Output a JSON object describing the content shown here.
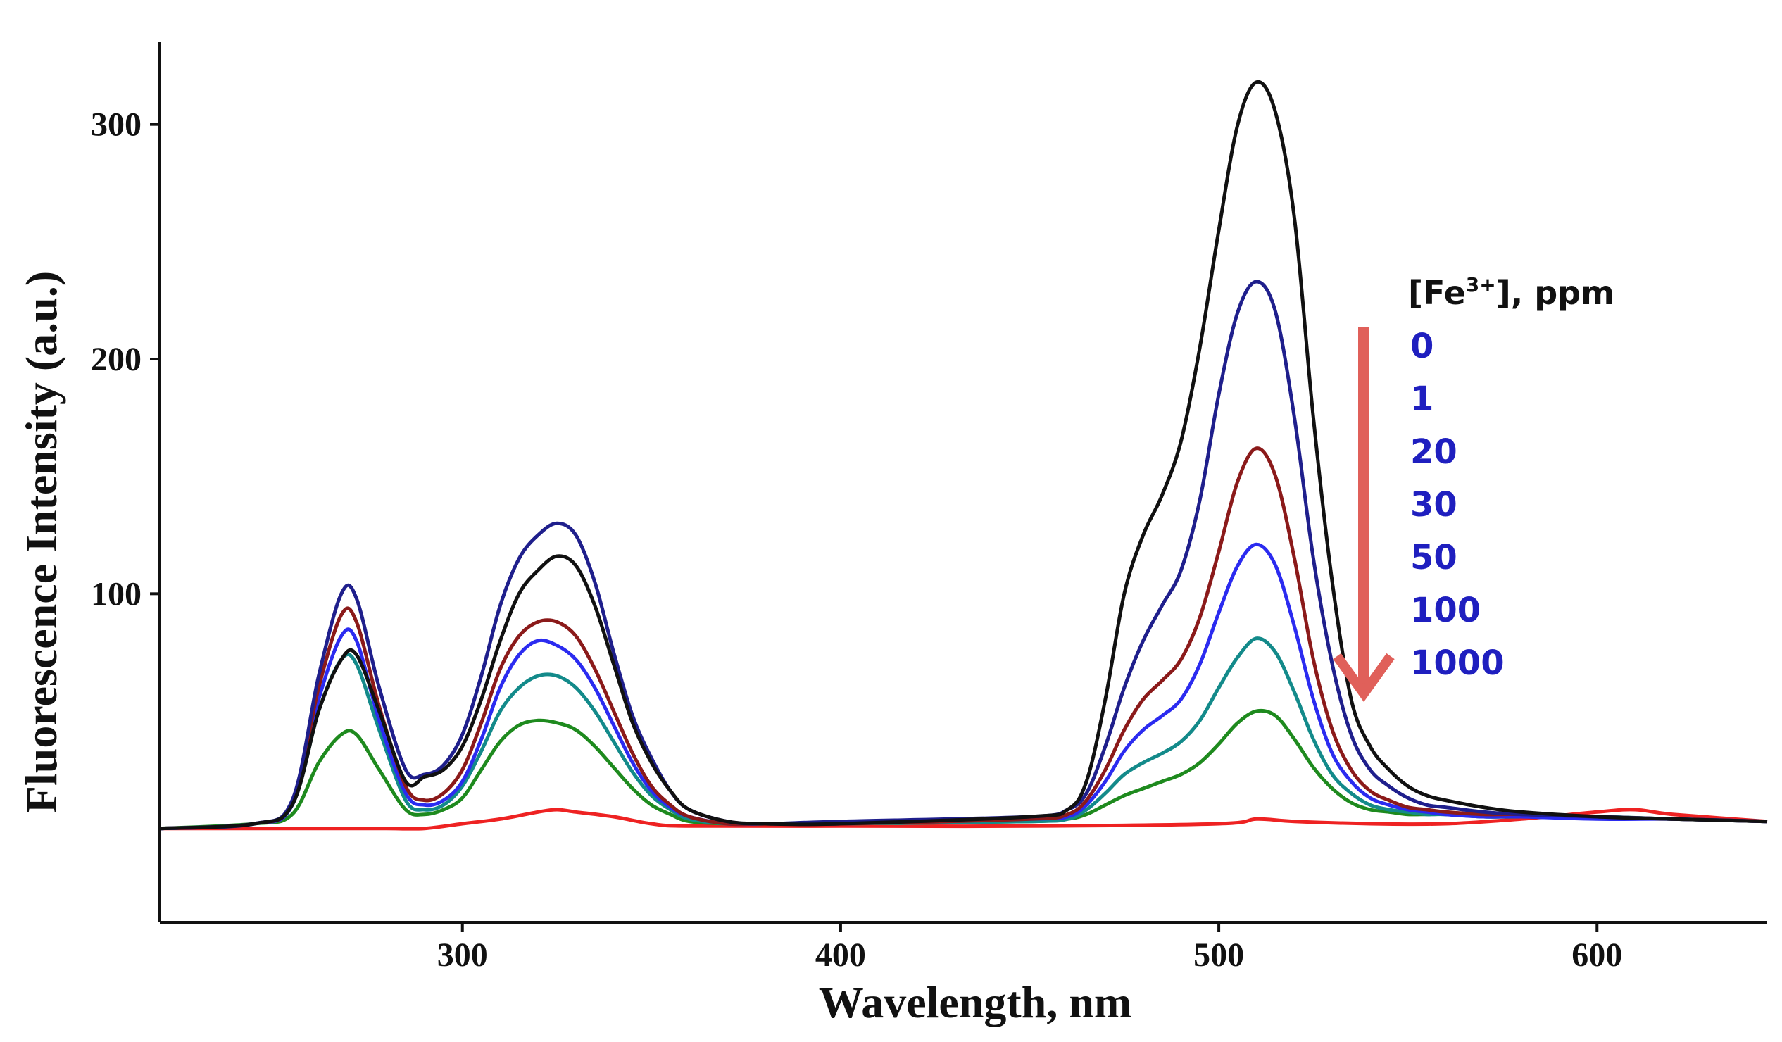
{
  "chart_data": {
    "type": "line",
    "title": "",
    "xlabel": "Wavelength, nm",
    "ylabel": "Fluorescence  Intensity (a.u.)",
    "xlim": [
      220,
      645
    ],
    "ylim": [
      -40,
      335
    ],
    "xticks": [
      300,
      400,
      500,
      600
    ],
    "yticks": [
      100,
      200,
      300
    ],
    "grid": false,
    "legend": {
      "title_prefix": "[Fe",
      "title_sup": "3+",
      "title_suffix": "], ppm",
      "placement": "right",
      "text_color": "#1f1fbf",
      "arrow_color": "#e0605a",
      "entries": [
        "0",
        "1",
        "20",
        "30",
        "50",
        "100",
        "1000"
      ]
    },
    "series": [
      {
        "name": "0",
        "color": "#111111",
        "x": [
          220,
          245,
          255,
          262,
          268,
          272,
          278,
          285,
          290,
          295,
          300,
          305,
          310,
          315,
          320,
          325,
          330,
          335,
          340,
          345,
          350,
          355,
          360,
          370,
          380,
          400,
          450,
          460,
          465,
          470,
          475,
          480,
          485,
          490,
          495,
          500,
          505,
          510,
          515,
          520,
          525,
          530,
          535,
          540,
          545,
          550,
          555,
          560,
          570,
          580,
          600,
          620,
          645
        ],
        "y": [
          0,
          2,
          10,
          50,
          72,
          74,
          50,
          20,
          22,
          25,
          35,
          55,
          80,
          100,
          110,
          116,
          112,
          95,
          70,
          45,
          28,
          16,
          8,
          3,
          2,
          2,
          5,
          8,
          20,
          55,
          100,
          125,
          142,
          165,
          205,
          255,
          300,
          318,
          305,
          260,
          175,
          105,
          55,
          35,
          25,
          18,
          14,
          12,
          9,
          7,
          5,
          4,
          3
        ]
      },
      {
        "name": "1",
        "color": "#1f1f8c",
        "x": [
          220,
          245,
          255,
          262,
          268,
          272,
          278,
          285,
          290,
          295,
          300,
          305,
          310,
          315,
          320,
          325,
          330,
          335,
          340,
          345,
          350,
          355,
          360,
          370,
          380,
          400,
          450,
          460,
          465,
          470,
          475,
          480,
          485,
          490,
          495,
          500,
          505,
          510,
          515,
          520,
          525,
          530,
          535,
          540,
          545,
          550,
          555,
          560,
          570,
          580,
          600,
          620,
          645
        ],
        "y": [
          0,
          2,
          12,
          65,
          100,
          98,
          60,
          25,
          23,
          27,
          40,
          65,
          95,
          115,
          125,
          130,
          125,
          105,
          75,
          48,
          30,
          16,
          8,
          3,
          2,
          3,
          5,
          8,
          15,
          35,
          60,
          80,
          95,
          110,
          140,
          185,
          220,
          233,
          220,
          175,
          115,
          70,
          40,
          25,
          18,
          13,
          10,
          9,
          7,
          6,
          5,
          4,
          3
        ]
      },
      {
        "name": "20",
        "color": "#8b1a1a",
        "x": [
          220,
          245,
          255,
          262,
          268,
          272,
          278,
          285,
          290,
          295,
          300,
          305,
          310,
          315,
          320,
          325,
          330,
          335,
          340,
          345,
          350,
          355,
          360,
          370,
          380,
          400,
          450,
          460,
          465,
          470,
          475,
          480,
          485,
          490,
          495,
          500,
          505,
          510,
          515,
          520,
          525,
          530,
          535,
          540,
          545,
          550,
          555,
          560,
          570,
          580,
          600,
          620,
          645
        ],
        "y": [
          0,
          2,
          11,
          60,
          91,
          88,
          52,
          18,
          12,
          15,
          25,
          45,
          68,
          82,
          88,
          88,
          82,
          68,
          50,
          32,
          18,
          10,
          5,
          2,
          2,
          2,
          4,
          6,
          12,
          25,
          42,
          55,
          63,
          72,
          90,
          118,
          148,
          162,
          150,
          115,
          72,
          42,
          25,
          16,
          12,
          9,
          8,
          7,
          6,
          6,
          5,
          4,
          3
        ]
      },
      {
        "name": "30",
        "color": "#2b2bf0",
        "x": [
          220,
          245,
          255,
          262,
          268,
          272,
          278,
          285,
          290,
          295,
          300,
          305,
          310,
          315,
          320,
          325,
          330,
          335,
          340,
          345,
          350,
          355,
          360,
          370,
          380,
          400,
          450,
          460,
          465,
          470,
          475,
          480,
          485,
          490,
          495,
          500,
          505,
          510,
          515,
          520,
          525,
          530,
          535,
          540,
          545,
          550,
          555,
          560,
          570,
          580,
          600,
          620,
          645
        ],
        "y": [
          0,
          2,
          10,
          55,
          82,
          80,
          46,
          15,
          10,
          12,
          20,
          38,
          60,
          74,
          80,
          78,
          72,
          60,
          44,
          28,
          16,
          9,
          5,
          2,
          2,
          2,
          4,
          5,
          10,
          20,
          33,
          42,
          48,
          55,
          70,
          92,
          112,
          121,
          112,
          86,
          55,
          32,
          20,
          13,
          10,
          8,
          7,
          6,
          5,
          5,
          4,
          4,
          3
        ]
      },
      {
        "name": "50",
        "color": "#138a8a",
        "x": [
          220,
          245,
          255,
          262,
          268,
          272,
          278,
          285,
          290,
          295,
          300,
          305,
          310,
          315,
          320,
          325,
          330,
          335,
          340,
          345,
          350,
          355,
          360,
          370,
          380,
          400,
          450,
          460,
          465,
          470,
          475,
          480,
          485,
          490,
          495,
          500,
          505,
          510,
          515,
          520,
          525,
          530,
          535,
          540,
          545,
          550,
          555,
          560,
          570,
          580,
          600,
          620,
          645
        ],
        "y": [
          0,
          2,
          10,
          50,
          72,
          70,
          42,
          12,
          8,
          10,
          18,
          33,
          50,
          60,
          65,
          65,
          60,
          50,
          37,
          24,
          14,
          8,
          4,
          2,
          2,
          2,
          3,
          4,
          8,
          15,
          23,
          28,
          32,
          37,
          46,
          60,
          73,
          81,
          75,
          58,
          38,
          23,
          15,
          10,
          8,
          7,
          6,
          6,
          5,
          5,
          5,
          4,
          3
        ]
      },
      {
        "name": "100",
        "color": "#1e8a1e",
        "x": [
          220,
          245,
          255,
          262,
          268,
          272,
          278,
          285,
          290,
          295,
          300,
          305,
          310,
          315,
          320,
          325,
          330,
          335,
          340,
          345,
          350,
          355,
          360,
          370,
          380,
          400,
          450,
          460,
          465,
          470,
          475,
          480,
          485,
          490,
          495,
          500,
          505,
          510,
          515,
          520,
          525,
          530,
          535,
          540,
          545,
          550,
          555,
          560,
          570,
          580,
          600,
          620,
          645
        ],
        "y": [
          0,
          2,
          6,
          28,
          40,
          40,
          25,
          8,
          6,
          8,
          13,
          25,
          37,
          44,
          46,
          45,
          42,
          35,
          26,
          17,
          10,
          6,
          3,
          2,
          2,
          2,
          3,
          4,
          6,
          10,
          14,
          17,
          20,
          23,
          28,
          36,
          45,
          50,
          48,
          38,
          26,
          17,
          11,
          8,
          7,
          6,
          6,
          6,
          5,
          5,
          5,
          4,
          3
        ]
      },
      {
        "name": "1000",
        "color": "#ee2222",
        "x": [
          220,
          260,
          270,
          280,
          290,
          300,
          310,
          320,
          325,
          330,
          340,
          350,
          360,
          400,
          450,
          500,
          510,
          520,
          540,
          560,
          580,
          600,
          610,
          620,
          645
        ],
        "y": [
          0,
          0,
          0,
          0,
          0,
          2,
          4,
          7,
          8,
          7,
          5,
          2,
          1,
          1,
          1,
          2,
          4,
          3,
          2,
          2,
          4,
          7,
          8,
          6,
          3
        ]
      }
    ]
  }
}
